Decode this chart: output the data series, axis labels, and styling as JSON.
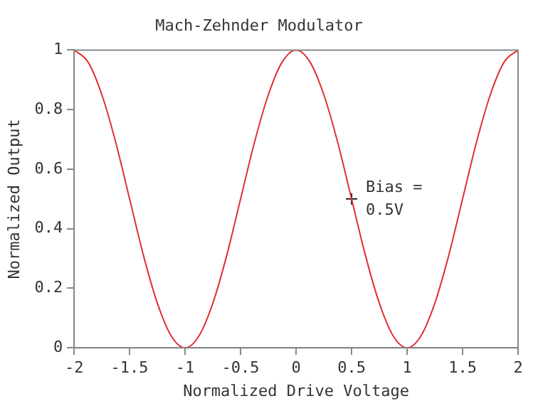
{
  "chart_data": {
    "type": "line",
    "title": "Mach-Zehnder Modulator",
    "xlabel": "Normalized Drive Voltage",
    "ylabel": "Normalized Output",
    "xlim": [
      -2,
      2
    ],
    "xticks": [
      -2,
      -1.5,
      -1,
      -0.5,
      0,
      0.5,
      1,
      1.5,
      2
    ],
    "ylim": [
      0,
      1
    ],
    "yticks": [
      0,
      0.2,
      0.4,
      0.6,
      0.8,
      1
    ],
    "grid": false,
    "legend": false,
    "series": [
      {
        "color": "#e03030",
        "marker": "none",
        "x": [
          -2,
          -1.875,
          -1.75,
          -1.625,
          -1.5,
          -1.375,
          -1.25,
          -1.125,
          -1,
          -0.875,
          -0.75,
          -0.625,
          -0.5,
          -0.375,
          -0.25,
          -0.125,
          0,
          0.125,
          0.25,
          0.375,
          0.5,
          0.625,
          0.75,
          0.875,
          1,
          1.125,
          1.25,
          1.375,
          1.5,
          1.625,
          1.75,
          1.875,
          2
        ],
        "values": [
          1,
          0.96,
          0.85,
          0.69,
          0.5,
          0.31,
          0.15,
          0.04,
          0,
          0.04,
          0.15,
          0.31,
          0.5,
          0.69,
          0.85,
          0.96,
          1,
          0.96,
          0.85,
          0.69,
          0.5,
          0.31,
          0.15,
          0.04,
          0,
          0.04,
          0.15,
          0.31,
          0.5,
          0.69,
          0.85,
          0.96,
          1
        ]
      },
      {
        "type": "scatter",
        "color": "#202020",
        "marker": "cross",
        "x": [
          0.5
        ],
        "values": [
          0.5
        ]
      }
    ],
    "annotations": [
      {
        "text": "Bias =\n0.5V",
        "x": 0.5,
        "y": 0.5
      }
    ]
  }
}
